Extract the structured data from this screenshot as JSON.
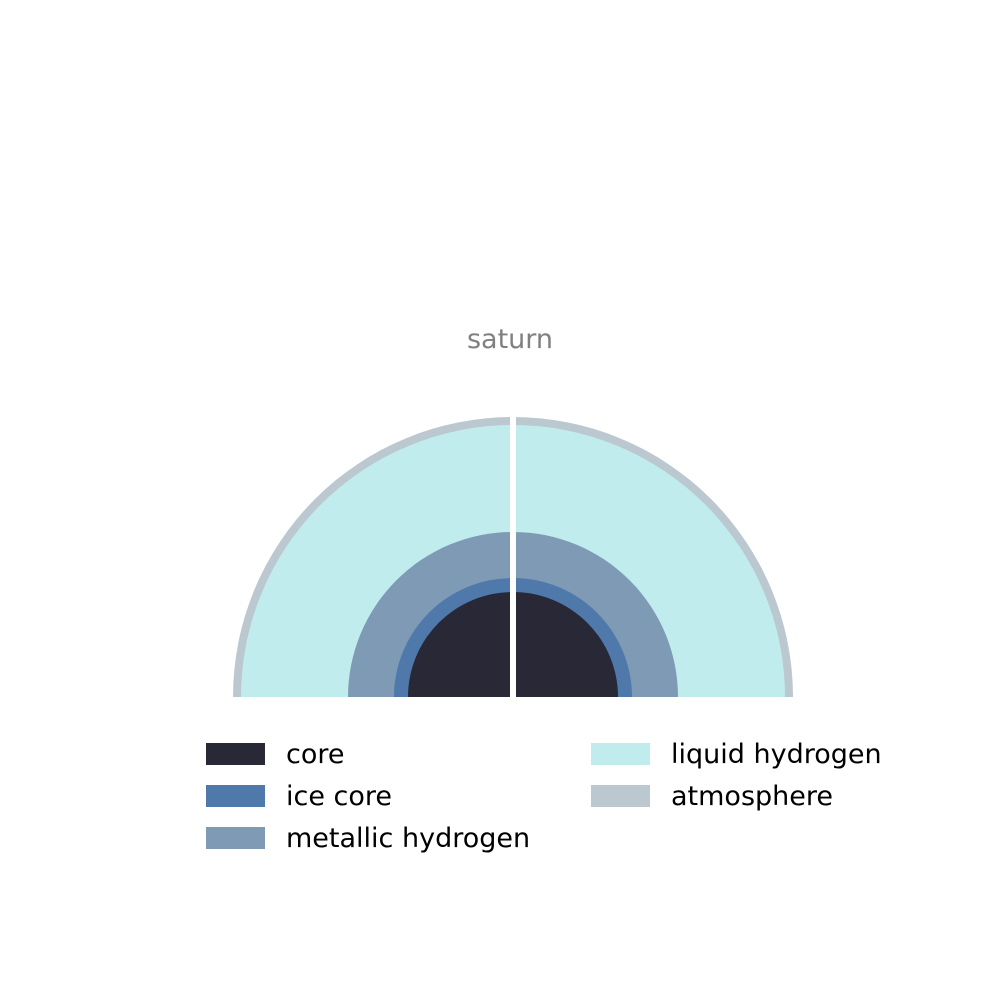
{
  "title": "saturn",
  "layers": [
    {
      "name": "core",
      "color": "#282836"
    },
    {
      "name": "ice core",
      "color": "#4e79aa"
    },
    {
      "name": "metallic hydrogen",
      "color": "#7e9ab4"
    },
    {
      "name": "liquid hydrogen",
      "color": "#c0ecee"
    },
    {
      "name": "atmosphere",
      "color": "#bcc8d0"
    }
  ],
  "legend": {
    "items": [
      {
        "label": "core"
      },
      {
        "label": "ice core"
      },
      {
        "label": "metallic hydrogen"
      },
      {
        "label": "liquid hydrogen"
      },
      {
        "label": "atmosphere"
      }
    ]
  }
}
